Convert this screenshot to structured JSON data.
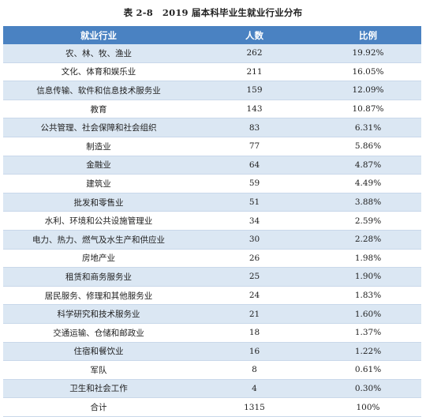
{
  "caption": {
    "number": "表 2-8",
    "title": "2019 届本科毕业生就业行业分布"
  },
  "table": {
    "headers": [
      "就业行业",
      "人数",
      "比例"
    ],
    "rows": [
      [
        "农、林、牧、渔业",
        "262",
        "19.92%"
      ],
      [
        "文化、体育和娱乐业",
        "211",
        "16.05%"
      ],
      [
        "信息传输、软件和信息技术服务业",
        "159",
        "12.09%"
      ],
      [
        "教育",
        "143",
        "10.87%"
      ],
      [
        "公共管理、社会保障和社会组织",
        "83",
        "6.31%"
      ],
      [
        "制造业",
        "77",
        "5.86%"
      ],
      [
        "金融业",
        "64",
        "4.87%"
      ],
      [
        "建筑业",
        "59",
        "4.49%"
      ],
      [
        "批发和零售业",
        "51",
        "3.88%"
      ],
      [
        "水利、环境和公共设施管理业",
        "34",
        "2.59%"
      ],
      [
        "电力、热力、燃气及水生产和供应业",
        "30",
        "2.28%"
      ],
      [
        "房地产业",
        "26",
        "1.98%"
      ],
      [
        "租赁和商务服务业",
        "25",
        "1.90%"
      ],
      [
        "居民服务、修理和其他服务业",
        "24",
        "1.83%"
      ],
      [
        "科学研究和技术服务业",
        "21",
        "1.60%"
      ],
      [
        "交通运输、仓储和邮政业",
        "18",
        "1.37%"
      ],
      [
        "住宿和餐饮业",
        "16",
        "1.22%"
      ],
      [
        "军队",
        "8",
        "0.61%"
      ],
      [
        "卫生和社会工作",
        "4",
        "0.30%"
      ],
      [
        "合计",
        "1315",
        "100%"
      ]
    ]
  },
  "colors": {
    "header_bg": "#4a82c2",
    "stripe_bg": "#dbe7f3"
  }
}
